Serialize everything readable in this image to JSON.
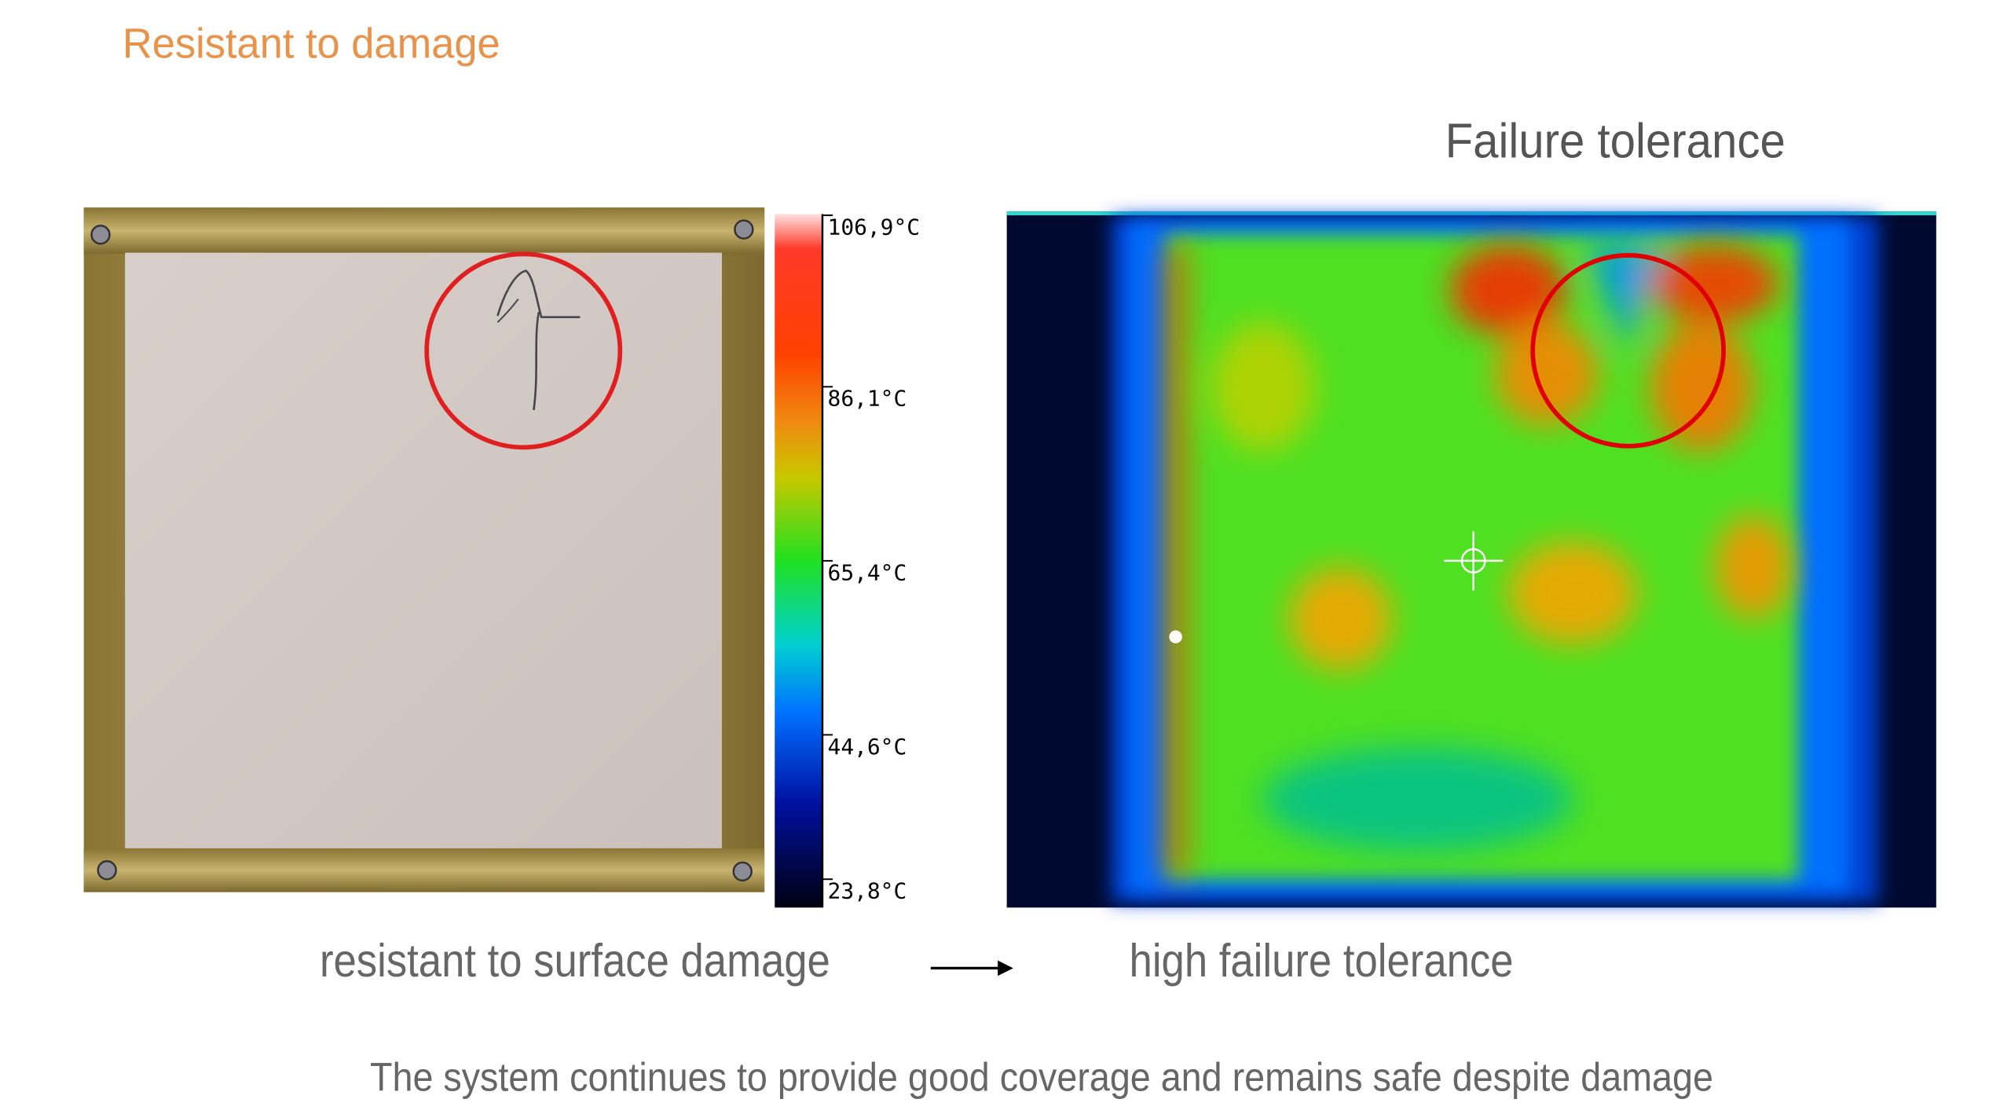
{
  "title": "Resistant to damage",
  "right_heading": "Failure tolerance",
  "colorbar": {
    "labels": [
      "106,9°C",
      "86,1°C",
      "65,4°C",
      "44,6°C",
      "23,8°C"
    ]
  },
  "captions": {
    "left": "resistant to surface damage",
    "right": "high failure tolerance"
  },
  "footer": "The system continues to provide good coverage and remains safe despite damage"
}
